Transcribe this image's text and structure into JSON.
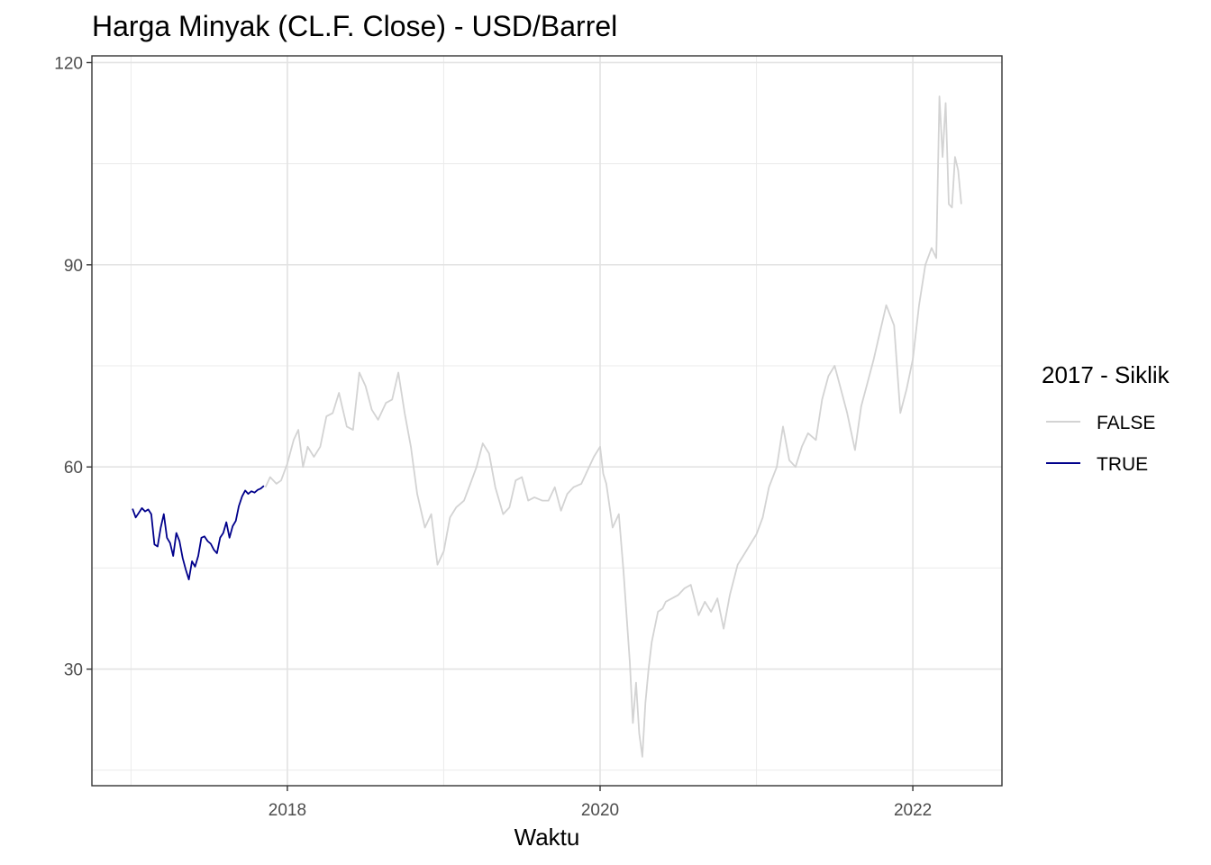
{
  "chart_data": {
    "type": "line",
    "title": "Harga Minyak (CL.F. Close) - USD/Barrel",
    "xlabel": "Waktu",
    "ylabel": "",
    "xlim": [
      2016.75,
      2022.57
    ],
    "ylim": [
      12.7,
      121.0
    ],
    "x_ticks": [
      2018,
      2020,
      2022
    ],
    "x_tick_labels": [
      "2018",
      "2020",
      "2022"
    ],
    "x_minor_ticks": [
      2017,
      2019,
      2021
    ],
    "y_ticks": [
      30,
      60,
      90,
      120
    ],
    "y_tick_labels": [
      "30",
      "60",
      "90",
      "120"
    ],
    "y_minor_ticks": [
      15,
      45,
      75,
      105
    ],
    "grid": true,
    "legend": {
      "title": "2017 - Siklik",
      "position": "right"
    },
    "series": [
      {
        "name": "FALSE",
        "color": "#d3d3d3",
        "x": [
          2017.86,
          2017.89,
          2017.93,
          2017.96,
          2018.0,
          2018.04,
          2018.07,
          2018.1,
          2018.13,
          2018.17,
          2018.21,
          2018.25,
          2018.29,
          2018.33,
          2018.38,
          2018.42,
          2018.46,
          2018.5,
          2018.54,
          2018.58,
          2018.63,
          2018.67,
          2018.71,
          2018.75,
          2018.79,
          2018.83,
          2018.88,
          2018.92,
          2018.96,
          2019.0,
          2019.04,
          2019.08,
          2019.13,
          2019.17,
          2019.21,
          2019.25,
          2019.29,
          2019.33,
          2019.38,
          2019.42,
          2019.46,
          2019.5,
          2019.54,
          2019.58,
          2019.63,
          2019.67,
          2019.71,
          2019.75,
          2019.79,
          2019.83,
          2019.88,
          2019.92,
          2019.96,
          2020.0,
          2020.02,
          2020.04,
          2020.08,
          2020.12,
          2020.15,
          2020.19,
          2020.21,
          2020.23,
          2020.25,
          2020.27,
          2020.29,
          2020.31,
          2020.33,
          2020.37,
          2020.4,
          2020.42,
          2020.46,
          2020.5,
          2020.54,
          2020.58,
          2020.63,
          2020.67,
          2020.71,
          2020.75,
          2020.79,
          2020.83,
          2020.88,
          2020.92,
          2020.96,
          2021.0,
          2021.04,
          2021.08,
          2021.13,
          2021.17,
          2021.21,
          2021.25,
          2021.29,
          2021.33,
          2021.38,
          2021.42,
          2021.46,
          2021.5,
          2021.54,
          2021.58,
          2021.63,
          2021.67,
          2021.71,
          2021.75,
          2021.79,
          2021.83,
          2021.88,
          2021.92,
          2021.96,
          2022.0,
          2022.04,
          2022.08,
          2022.12,
          2022.15,
          2022.17,
          2022.19,
          2022.21,
          2022.23,
          2022.25,
          2022.27,
          2022.29,
          2022.31
        ],
        "values": [
          57.0,
          58.5,
          57.5,
          58.0,
          60.5,
          64.0,
          65.5,
          60.0,
          63.0,
          61.5,
          63.0,
          67.5,
          68.0,
          71.0,
          66.0,
          65.5,
          74.0,
          72.0,
          68.5,
          67.0,
          69.5,
          70.0,
          74.0,
          68.0,
          63.0,
          56.0,
          51.0,
          53.0,
          45.5,
          47.5,
          52.5,
          54.0,
          55.0,
          57.5,
          60.0,
          63.5,
          62.0,
          57.0,
          53.0,
          54.0,
          58.0,
          58.5,
          55.0,
          55.5,
          55.0,
          55.0,
          57.0,
          53.5,
          56.0,
          57.0,
          57.5,
          59.5,
          61.5,
          63.0,
          59.0,
          57.5,
          51.0,
          53.0,
          44.5,
          31.0,
          22.0,
          28.0,
          20.5,
          17.0,
          25.0,
          30.0,
          34.0,
          38.5,
          39.0,
          40.0,
          40.5,
          41.0,
          42.0,
          42.5,
          38.0,
          40.0,
          38.5,
          40.5,
          36.0,
          41.0,
          45.5,
          47.0,
          48.5,
          50.0,
          52.5,
          57.0,
          60.0,
          66.0,
          61.0,
          60.0,
          63.0,
          65.0,
          64.0,
          70.0,
          73.5,
          75.0,
          71.5,
          68.0,
          62.5,
          69.0,
          72.5,
          76.0,
          80.0,
          84.0,
          81.0,
          68.0,
          71.5,
          76.0,
          84.0,
          90.0,
          92.5,
          91.0,
          115.0,
          106.0,
          114.0,
          99.0,
          98.5,
          106.0,
          104.0,
          99.0
        ]
      },
      {
        "name": "TRUE",
        "color": "#00008b",
        "x": [
          2017.01,
          2017.03,
          2017.05,
          2017.07,
          2017.09,
          2017.11,
          2017.13,
          2017.15,
          2017.17,
          2017.19,
          2017.21,
          2017.23,
          2017.25,
          2017.27,
          2017.29,
          2017.31,
          2017.33,
          2017.35,
          2017.37,
          2017.39,
          2017.41,
          2017.43,
          2017.45,
          2017.47,
          2017.49,
          2017.51,
          2017.53,
          2017.55,
          2017.57,
          2017.59,
          2017.61,
          2017.63,
          2017.65,
          2017.67,
          2017.69,
          2017.71,
          2017.73,
          2017.75,
          2017.77,
          2017.79,
          2017.81,
          2017.83,
          2017.85
        ],
        "values": [
          53.8,
          52.5,
          53.2,
          53.9,
          53.4,
          53.7,
          53.0,
          48.5,
          48.2,
          51.0,
          53.0,
          49.5,
          48.7,
          46.8,
          50.2,
          49.0,
          46.5,
          44.8,
          43.3,
          46.0,
          45.2,
          46.8,
          49.5,
          49.7,
          49.0,
          48.6,
          47.7,
          47.2,
          49.5,
          50.2,
          51.8,
          49.5,
          51.2,
          52.0,
          54.2,
          55.6,
          56.5,
          56.0,
          56.4,
          56.2,
          56.6,
          56.8,
          57.2
        ]
      }
    ]
  }
}
